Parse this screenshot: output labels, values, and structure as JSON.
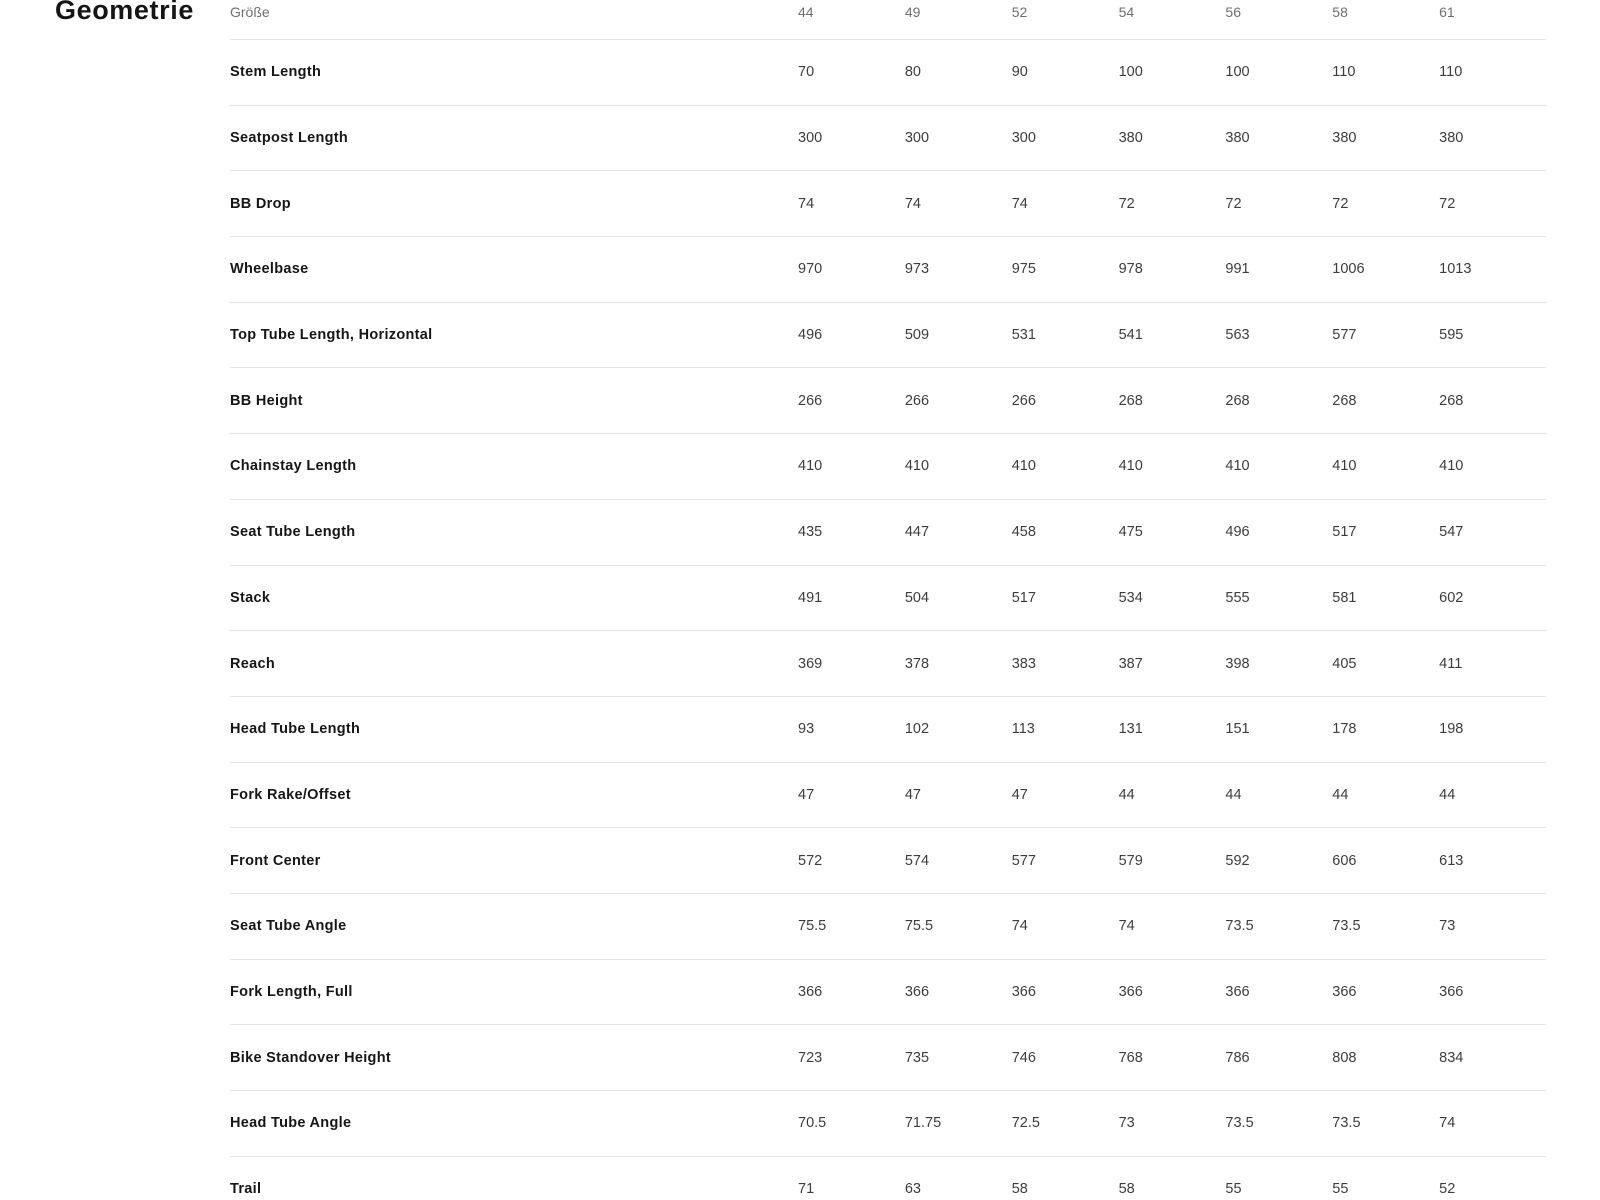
{
  "section": {
    "title": "Geometrie"
  },
  "table": {
    "size_header": "Größe",
    "sizes": [
      "44",
      "49",
      "52",
      "54",
      "56",
      "58",
      "61"
    ],
    "rows": [
      {
        "label": "Stem Length",
        "values": [
          "70",
          "80",
          "90",
          "100",
          "100",
          "110",
          "110"
        ]
      },
      {
        "label": "Seatpost Length",
        "values": [
          "300",
          "300",
          "300",
          "380",
          "380",
          "380",
          "380"
        ]
      },
      {
        "label": "BB Drop",
        "values": [
          "74",
          "74",
          "74",
          "72",
          "72",
          "72",
          "72"
        ]
      },
      {
        "label": "Wheelbase",
        "values": [
          "970",
          "973",
          "975",
          "978",
          "991",
          "1006",
          "1013"
        ]
      },
      {
        "label": "Top Tube Length, Horizontal",
        "values": [
          "496",
          "509",
          "531",
          "541",
          "563",
          "577",
          "595"
        ]
      },
      {
        "label": "BB Height",
        "values": [
          "266",
          "266",
          "266",
          "268",
          "268",
          "268",
          "268"
        ]
      },
      {
        "label": "Chainstay Length",
        "values": [
          "410",
          "410",
          "410",
          "410",
          "410",
          "410",
          "410"
        ]
      },
      {
        "label": "Seat Tube Length",
        "values": [
          "435",
          "447",
          "458",
          "475",
          "496",
          "517",
          "547"
        ]
      },
      {
        "label": "Stack",
        "values": [
          "491",
          "504",
          "517",
          "534",
          "555",
          "581",
          "602"
        ]
      },
      {
        "label": "Reach",
        "values": [
          "369",
          "378",
          "383",
          "387",
          "398",
          "405",
          "411"
        ]
      },
      {
        "label": "Head Tube Length",
        "values": [
          "93",
          "102",
          "113",
          "131",
          "151",
          "178",
          "198"
        ]
      },
      {
        "label": "Fork Rake/Offset",
        "values": [
          "47",
          "47",
          "47",
          "44",
          "44",
          "44",
          "44"
        ]
      },
      {
        "label": "Front Center",
        "values": [
          "572",
          "574",
          "577",
          "579",
          "592",
          "606",
          "613"
        ]
      },
      {
        "label": "Seat Tube Angle",
        "values": [
          "75.5",
          "75.5",
          "74",
          "74",
          "73.5",
          "73.5",
          "73"
        ]
      },
      {
        "label": "Fork Length, Full",
        "values": [
          "366",
          "366",
          "366",
          "366",
          "366",
          "366",
          "366"
        ]
      },
      {
        "label": "Bike Standover Height",
        "values": [
          "723",
          "735",
          "746",
          "768",
          "786",
          "808",
          "834"
        ]
      },
      {
        "label": "Head Tube Angle",
        "values": [
          "70.5",
          "71.75",
          "72.5",
          "73",
          "73.5",
          "73.5",
          "74"
        ]
      },
      {
        "label": "Trail",
        "values": [
          "71",
          "63",
          "58",
          "58",
          "55",
          "55",
          "52"
        ]
      }
    ]
  }
}
